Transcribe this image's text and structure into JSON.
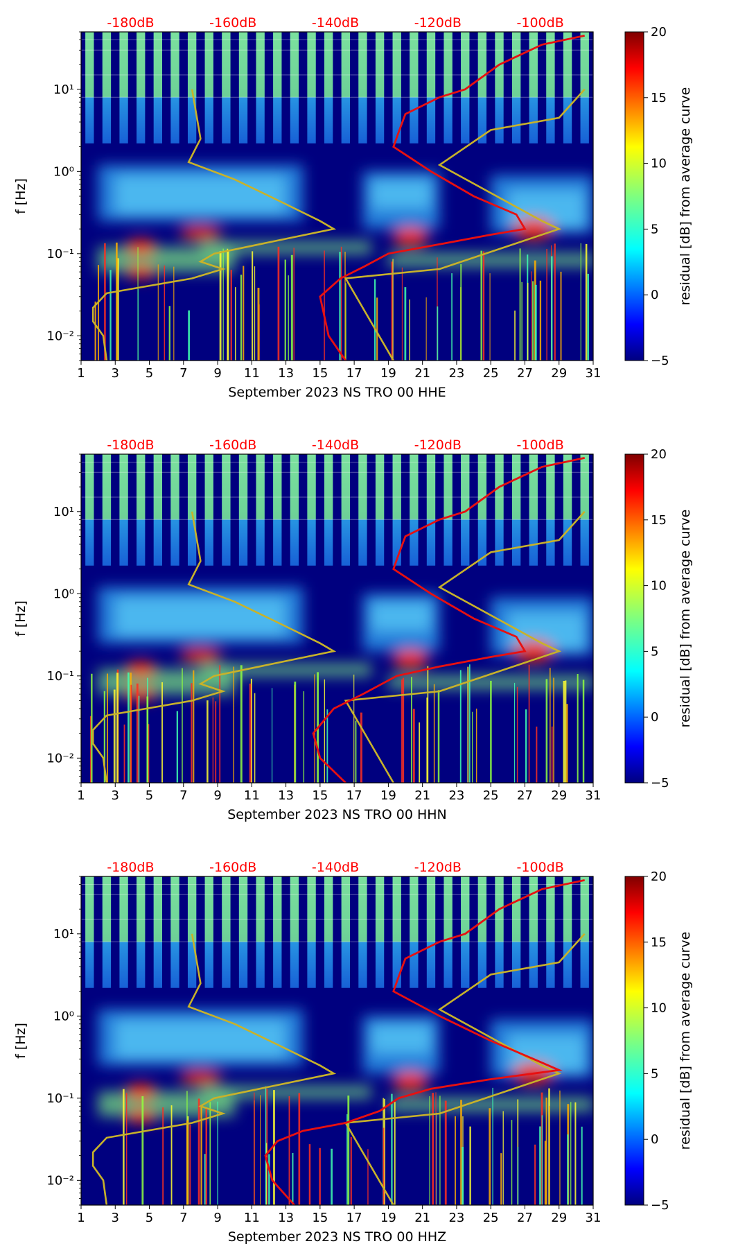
{
  "colorbar_label": "residual [dB] from average curve",
  "colorbar_ticks": [
    "20",
    "15",
    "10",
    "5",
    "0",
    "−5"
  ],
  "colorbar_range": [
    -5,
    20
  ],
  "colors": {
    "db_label": "#ff0000",
    "nlnm_curve": "#c8b22a",
    "psd_curve": "#e81010",
    "background": "#00007f"
  },
  "chart_data": [
    {
      "type": "heatmap",
      "title": "",
      "xlabel": "September 2023 NS TRO 00 HHE",
      "ylabel": "f [Hz]",
      "x_tick_labels": [
        "1",
        "3",
        "5",
        "7",
        "9",
        "11",
        "13",
        "15",
        "17",
        "19",
        "21",
        "23",
        "25",
        "27",
        "29",
        "31"
      ],
      "y_tick_labels": [
        "10¹",
        "10⁰",
        "10⁻¹",
        "10⁻²"
      ],
      "top_axis_labels": [
        "-180dB",
        "-160dB",
        "-140dB",
        "-120dB",
        "-100dB"
      ],
      "xlim": [
        1,
        31
      ],
      "ylim_hz": [
        0.005,
        50
      ],
      "psd_curve": [
        [
          0.005,
          16.5
        ],
        [
          0.01,
          15.5
        ],
        [
          0.03,
          15.0
        ],
        [
          0.05,
          16.2
        ],
        [
          0.07,
          17.6
        ],
        [
          0.1,
          19.0
        ],
        [
          0.13,
          22.0
        ],
        [
          0.17,
          25.0
        ],
        [
          0.2,
          27.0
        ],
        [
          0.3,
          26.5
        ],
        [
          0.5,
          24.0
        ],
        [
          1.0,
          21.5
        ],
        [
          2.0,
          19.3
        ],
        [
          3.0,
          19.6
        ],
        [
          5.0,
          20.0
        ],
        [
          8.0,
          22.0
        ],
        [
          10.0,
          23.5
        ],
        [
          20.0,
          25.5
        ],
        [
          35.0,
          28.0
        ],
        [
          45.0,
          30.5
        ]
      ]
    },
    {
      "type": "heatmap",
      "title": "",
      "xlabel": "September 2023 NS TRO 00 HHN",
      "ylabel": "f [Hz]",
      "x_tick_labels": [
        "1",
        "3",
        "5",
        "7",
        "9",
        "11",
        "13",
        "15",
        "17",
        "19",
        "21",
        "23",
        "25",
        "27",
        "29",
        "31"
      ],
      "y_tick_labels": [
        "10¹",
        "10⁰",
        "10⁻¹",
        "10⁻²"
      ],
      "top_axis_labels": [
        "-180dB",
        "-160dB",
        "-140dB",
        "-120dB",
        "-100dB"
      ],
      "xlim": [
        1,
        31
      ],
      "ylim_hz": [
        0.005,
        50
      ],
      "psd_curve": [
        [
          0.005,
          16.5
        ],
        [
          0.01,
          15.0
        ],
        [
          0.02,
          14.6
        ],
        [
          0.04,
          15.8
        ],
        [
          0.06,
          17.5
        ],
        [
          0.1,
          19.5
        ],
        [
          0.13,
          22.0
        ],
        [
          0.17,
          25.0
        ],
        [
          0.2,
          27.0
        ],
        [
          0.3,
          26.5
        ],
        [
          0.5,
          24.0
        ],
        [
          1.0,
          21.5
        ],
        [
          2.0,
          19.3
        ],
        [
          3.0,
          19.6
        ],
        [
          5.0,
          20.0
        ],
        [
          8.0,
          22.0
        ],
        [
          10.0,
          23.5
        ],
        [
          20.0,
          25.5
        ],
        [
          35.0,
          28.0
        ],
        [
          45.0,
          30.5
        ]
      ]
    },
    {
      "type": "heatmap",
      "title": "",
      "xlabel": "September 2023 NS TRO 00 HHZ",
      "ylabel": "f [Hz]",
      "x_tick_labels": [
        "1",
        "3",
        "5",
        "7",
        "9",
        "11",
        "13",
        "15",
        "17",
        "19",
        "21",
        "23",
        "25",
        "27",
        "29",
        "31"
      ],
      "y_tick_labels": [
        "10¹",
        "10⁰",
        "10⁻¹",
        "10⁻²"
      ],
      "top_axis_labels": [
        "-180dB",
        "-160dB",
        "-140dB",
        "-120dB",
        "-100dB"
      ],
      "xlim": [
        1,
        31
      ],
      "ylim_hz": [
        0.005,
        50
      ],
      "psd_curve": [
        [
          0.005,
          13.5
        ],
        [
          0.01,
          12.2
        ],
        [
          0.02,
          11.8
        ],
        [
          0.03,
          12.5
        ],
        [
          0.04,
          14.0
        ],
        [
          0.05,
          16.5
        ],
        [
          0.07,
          18.5
        ],
        [
          0.1,
          19.6
        ],
        [
          0.13,
          21.5
        ],
        [
          0.17,
          25.0
        ],
        [
          0.22,
          29.0
        ],
        [
          0.3,
          27.5
        ],
        [
          0.5,
          25.0
        ],
        [
          1.0,
          22.0
        ],
        [
          2.0,
          19.3
        ],
        [
          3.0,
          19.6
        ],
        [
          5.0,
          20.0
        ],
        [
          8.0,
          22.0
        ],
        [
          10.0,
          23.5
        ],
        [
          20.0,
          25.5
        ],
        [
          35.0,
          28.0
        ],
        [
          45.0,
          30.5
        ]
      ]
    }
  ],
  "nlnm_curve": [
    [
      0.005,
      2.5
    ],
    [
      0.01,
      2.3
    ],
    [
      0.015,
      1.7
    ],
    [
      0.022,
      1.7
    ],
    [
      0.033,
      2.5
    ],
    [
      0.05,
      7.5
    ],
    [
      0.065,
      9.3
    ],
    [
      0.08,
      8.0
    ],
    [
      0.1,
      8.8
    ],
    [
      0.2,
      15.8
    ],
    [
      0.25,
      15.0
    ],
    [
      0.4,
      13.0
    ],
    [
      0.8,
      10.0
    ],
    [
      1.3,
      7.3
    ],
    [
      2.5,
      8.0
    ],
    [
      10.0,
      7.5
    ]
  ],
  "nhnm_curve": [
    [
      0.005,
      19.3
    ],
    [
      0.05,
      16.5
    ],
    [
      0.065,
      22.0
    ],
    [
      0.2,
      29.0
    ],
    [
      0.25,
      28.0
    ],
    [
      1.2,
      22.0
    ],
    [
      3.2,
      25.0
    ],
    [
      4.5,
      29.0
    ],
    [
      10.0,
      30.5
    ]
  ]
}
